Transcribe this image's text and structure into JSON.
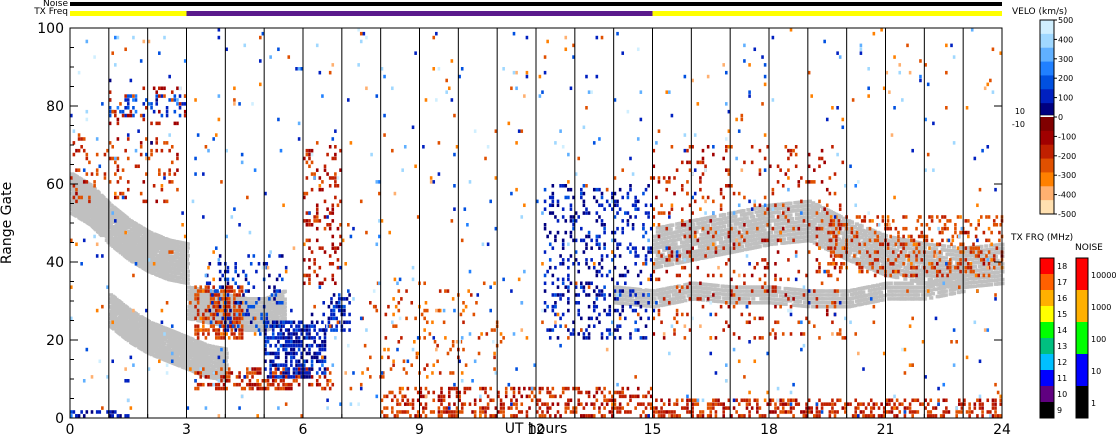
{
  "chart_data": {
    "type": "scatter",
    "xlabel": "UT hours",
    "ylabel": "Range Gate",
    "xlim": [
      0,
      24
    ],
    "ylim": [
      0,
      100
    ],
    "x_ticks": [
      "0",
      "3",
      "6",
      "9",
      "12",
      "15",
      "18",
      "21",
      "24"
    ],
    "y_ticks": [
      "0",
      "20",
      "40",
      "60",
      "80",
      "100"
    ],
    "scan_boundaries": [
      1,
      2,
      3,
      4,
      5,
      6,
      7,
      8,
      9,
      10,
      11,
      12,
      13,
      14,
      15,
      16,
      17,
      18,
      19,
      20,
      21,
      22,
      23
    ],
    "status_rows": {
      "labels": [
        "Noise",
        "TX Freq"
      ],
      "noise_color": "#000000",
      "tx_freq_segments": [
        {
          "start": 0,
          "end": 3,
          "color": "#ffff00"
        },
        {
          "start": 3,
          "end": 15,
          "color": "#5a1a8c"
        },
        {
          "start": 15,
          "end": 24,
          "color": "#ffff00"
        }
      ]
    },
    "ground_scatter": {
      "color": "#c0c0c0",
      "bands": [
        {
          "x": [
            0,
            0.5,
            1,
            1.5,
            2,
            2.5,
            3
          ],
          "y": [
            58,
            55,
            50,
            46,
            43,
            41,
            40
          ],
          "w": 5
        },
        {
          "x": [
            1,
            1.5,
            2,
            2.5,
            3,
            3.5,
            4
          ],
          "y": [
            28,
            24,
            21,
            19,
            17,
            15,
            14
          ],
          "w": 4
        },
        {
          "x": [
            3,
            3.5,
            4,
            4.5,
            5,
            5.5
          ],
          "y": [
            30,
            29,
            28,
            27,
            27,
            29
          ],
          "w": 4
        },
        {
          "x": [
            15,
            16,
            17,
            18,
            19,
            20,
            21,
            22,
            23,
            24
          ],
          "y": [
            44,
            46,
            48,
            50,
            51,
            46,
            42,
            40,
            39,
            40
          ],
          "w": 5
        },
        {
          "x": [
            14,
            15,
            16,
            17,
            18,
            19,
            20,
            21,
            22,
            23
          ],
          "y": [
            32,
            31,
            33,
            32,
            32,
            31,
            31,
            33,
            33,
            35
          ],
          "w": 2
        }
      ]
    },
    "velocity_clusters": [
      {
        "x": [
          3.2,
          4.5
        ],
        "y": [
          20,
          34
        ],
        "v": -220,
        "density": 0.55
      },
      {
        "x": [
          3.2,
          6.8
        ],
        "y": [
          7,
          13
        ],
        "v": -180,
        "density": 0.5
      },
      {
        "x": [
          5.0,
          6.6
        ],
        "y": [
          10,
          25
        ],
        "v": 90,
        "density": 0.6
      },
      {
        "x": [
          6.5,
          7.2
        ],
        "y": [
          22,
          32
        ],
        "v": 80,
        "density": 0.5
      },
      {
        "x": [
          3.5,
          5.5
        ],
        "y": [
          22,
          42
        ],
        "v": 120,
        "density": 0.18
      },
      {
        "x": [
          6.0,
          7.0
        ],
        "y": [
          34,
          70
        ],
        "v": -160,
        "density": 0.22
      },
      {
        "x": [
          0,
          2.8
        ],
        "y": [
          55,
          72
        ],
        "v": -200,
        "density": 0.15
      },
      {
        "x": [
          1.0,
          3.0
        ],
        "y": [
          77,
          83
        ],
        "v": 150,
        "density": 0.25
      },
      {
        "x": [
          1.0,
          3.0
        ],
        "y": [
          75,
          85
        ],
        "v": -150,
        "density": 0.12
      },
      {
        "x": [
          12.2,
          15.0
        ],
        "y": [
          20,
          60
        ],
        "v": 80,
        "density": 0.22
      },
      {
        "x": [
          7.5,
          11.0
        ],
        "y": [
          10,
          35
        ],
        "v": -260,
        "density": 0.08
      },
      {
        "x": [
          15.0,
          20.0
        ],
        "y": [
          20,
          70
        ],
        "v": -180,
        "density": 0.1
      },
      {
        "x": [
          19.5,
          24.0
        ],
        "y": [
          36,
          52
        ],
        "v": -220,
        "density": 0.3
      },
      {
        "x": [
          8.0,
          15.0
        ],
        "y": [
          0,
          8
        ],
        "v": -190,
        "density": 0.35
      },
      {
        "x": [
          15.0,
          24.0
        ],
        "y": [
          0,
          5
        ],
        "v": -190,
        "density": 0.45
      },
      {
        "x": [
          0,
          1.5
        ],
        "y": [
          0,
          2
        ],
        "v": 70,
        "density": 0.5
      },
      {
        "x": [
          0,
          24
        ],
        "y": [
          0,
          100
        ],
        "v": 150,
        "density": 0.008
      },
      {
        "x": [
          0,
          24
        ],
        "y": [
          0,
          100
        ],
        "v": -300,
        "density": 0.008
      },
      {
        "x": [
          0,
          24
        ],
        "y": [
          0,
          100
        ],
        "v": 380,
        "density": 0.006
      }
    ],
    "velocity_colorbar": {
      "title": "VELO (km/s)",
      "range": [
        -500,
        500
      ],
      "colors": [
        "#ffe0b0",
        "#ffb070",
        "#ff8000",
        "#e05000",
        "#c02000",
        "#a00000",
        "#800000",
        "#ffffff",
        "#000080",
        "#0020c0",
        "#0050e0",
        "#2080ff",
        "#60b0ff",
        "#a0d8ff",
        "#d0efff"
      ],
      "upper_ticks": [
        "500",
        "400",
        "300",
        "200",
        "100",
        "0"
      ],
      "lower_ticks": [
        "-100",
        "-200",
        "-300",
        "-400",
        "-500"
      ],
      "gap_labels": [
        "10",
        "-10",
        "0"
      ]
    },
    "tx_freq_colorbar": {
      "title": "TX FRQ (MHz)",
      "ticks": [
        "18",
        "17",
        "16",
        "15",
        "14",
        "13",
        "12",
        "11",
        "10",
        "9"
      ],
      "colors": [
        "#ff0000",
        "#ff6000",
        "#ffb000",
        "#ffff00",
        "#00ff00",
        "#00c080",
        "#00c0ff",
        "#0000ff",
        "#600080",
        "#000000"
      ]
    },
    "noise_colorbar": {
      "title": "NOISE",
      "ticks": [
        "10000",
        "1000",
        "100",
        "10",
        "1"
      ],
      "colors": [
        "#ff0000",
        "#ffb000",
        "#00ff00",
        "#0000ff",
        "#000000"
      ]
    }
  }
}
